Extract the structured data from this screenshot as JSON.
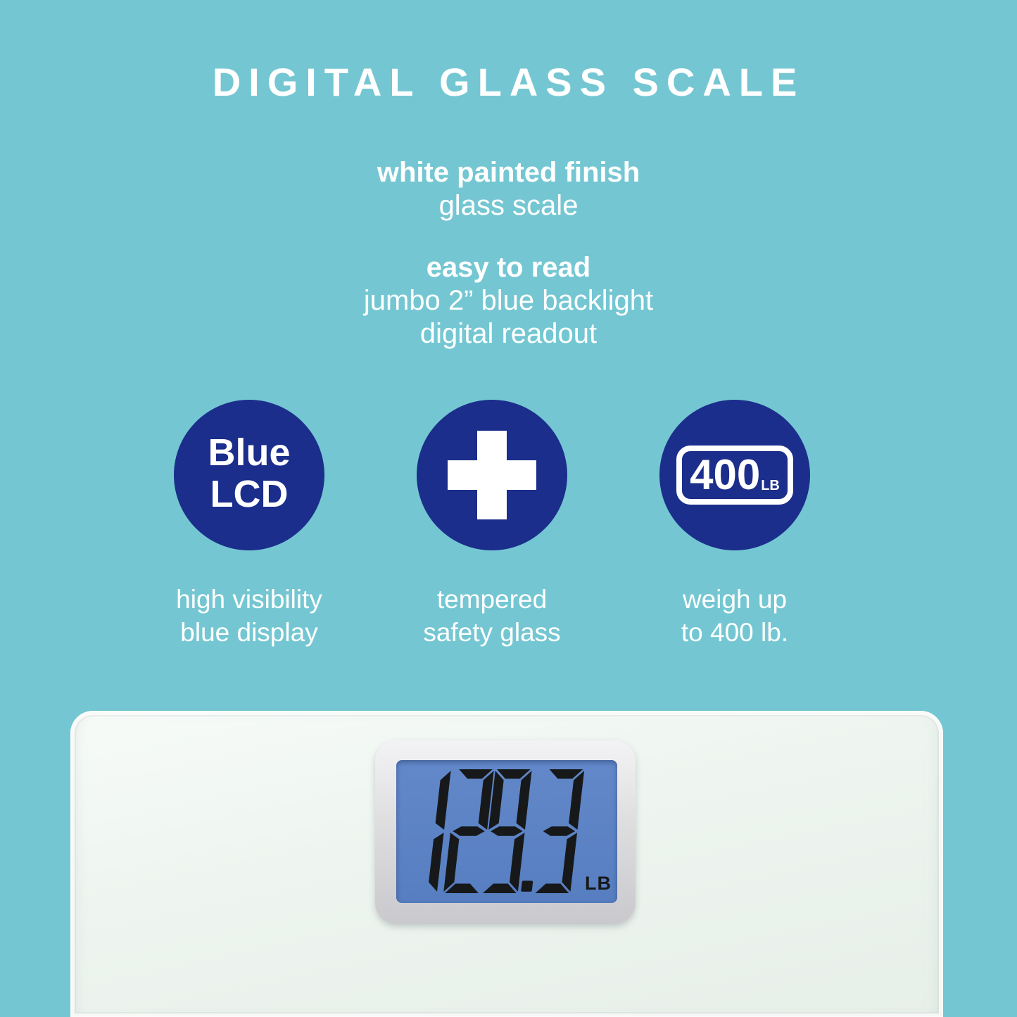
{
  "page": {
    "title": "DIGITAL GLASS SCALE"
  },
  "intro": {
    "heading": "white painted finish",
    "subline": "glass scale"
  },
  "readout": {
    "heading": "easy to read",
    "line2": "jumbo 2” blue backlight",
    "line3": "digital readout"
  },
  "features": [
    {
      "icon": "blue-lcd-circle-badge",
      "circle_line1": "Blue",
      "circle_line2": "LCD",
      "caption1": "high visibility",
      "caption2": "blue display"
    },
    {
      "icon": "medical-cross-icon",
      "caption1": "tempered",
      "caption2": "safety glass"
    },
    {
      "icon": "weight-capacity-badge",
      "badge_value": "400",
      "badge_unit": "LB",
      "caption1": "weigh up",
      "caption2": "to 400 lb."
    }
  ],
  "lcd": {
    "value": "129.3",
    "unit": "LB"
  },
  "colors": {
    "background": "#74c7d2",
    "badge_navy": "#1b2e8c",
    "lcd_screen_blue": "#5b82c4",
    "lcd_digit": "#17181a"
  }
}
